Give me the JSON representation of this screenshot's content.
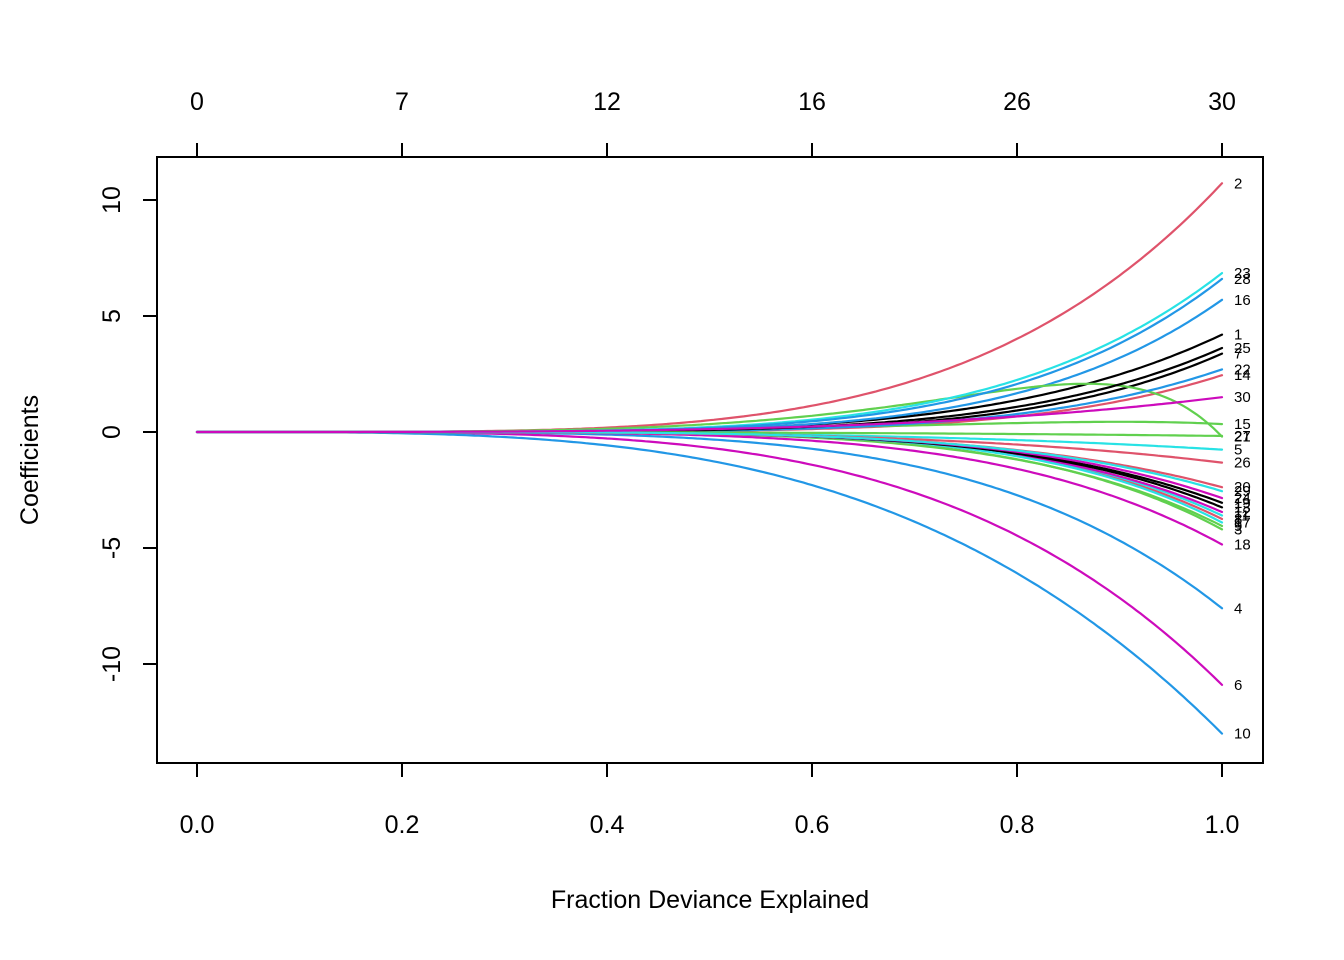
{
  "chart_data": {
    "type": "line",
    "title": "",
    "xlabel": "Fraction Deviance Explained",
    "ylabel": "Coefficients",
    "x_axis": {
      "range": [
        0.0,
        1.0
      ],
      "ticks": [
        0.0,
        0.2,
        0.4,
        0.6,
        0.8,
        1.0
      ],
      "tick_labels": [
        "0.0",
        "0.2",
        "0.4",
        "0.6",
        "0.8",
        "1.0"
      ]
    },
    "top_axis": {
      "ticks": [
        0.0,
        0.2,
        0.4,
        0.6,
        0.8,
        1.0
      ],
      "tick_labels": [
        "0",
        "7",
        "12",
        "16",
        "26",
        "30"
      ]
    },
    "y_axis": {
      "range": [
        -14,
        11.7
      ],
      "ticks": [
        -10,
        -5,
        0,
        5,
        10
      ],
      "tick_labels": [
        "-10",
        "-5",
        "0",
        "5",
        "10"
      ]
    },
    "grid": false,
    "legend": "none",
    "palette": {
      "black": "#000000",
      "red": "#DF536B",
      "green": "#61D04F",
      "blue": "#2297E6",
      "cyan": "#28E2E5",
      "magenta": "#CD0BBC"
    },
    "series": [
      {
        "label": "1",
        "color": "#000000",
        "end": 4.2,
        "coeffs": [
          [
            4.2,
            5.0
          ]
        ]
      },
      {
        "label": "2",
        "color": "#DF536B",
        "end": 10.72,
        "coeffs": [
          [
            10.72,
            4.4
          ]
        ]
      },
      {
        "label": "3",
        "color": "#61D04F",
        "end": -4.2,
        "coeffs": [
          [
            -4.2,
            5.7
          ]
        ]
      },
      {
        "label": "4",
        "color": "#2297E6",
        "end": -7.6,
        "coeffs": [
          [
            -7.6,
            4.6
          ]
        ]
      },
      {
        "label": "5",
        "color": "#28E2E5",
        "end": -0.76,
        "coeffs": [
          [
            -0.76,
            3.5
          ]
        ]
      },
      {
        "label": "6",
        "color": "#CD0BBC",
        "end": -10.9,
        "coeffs": [
          [
            -10.9,
            4.0
          ]
        ]
      },
      {
        "label": "7",
        "color": "#000000",
        "end": 3.38,
        "coeffs": [
          [
            3.38,
            5.8
          ]
        ]
      },
      {
        "label": "8",
        "color": "#DF536B",
        "end": -3.75,
        "coeffs": [
          [
            -3.75,
            5.8
          ]
        ]
      },
      {
        "label": "9",
        "color": "#61D04F",
        "end": -4.05,
        "coeffs": [
          [
            -4.05,
            5.5
          ]
        ]
      },
      {
        "label": "10",
        "color": "#2297E6",
        "end": -13.0,
        "coeffs": [
          [
            -13.0,
            3.4
          ]
        ]
      },
      {
        "label": "11",
        "color": "#28E2E5",
        "end": -3.6,
        "coeffs": [
          [
            -3.6,
            5.8
          ]
        ]
      },
      {
        "label": "12",
        "color": "#CD0BBC",
        "end": -3.45,
        "coeffs": [
          [
            -3.45,
            5.6
          ]
        ]
      },
      {
        "label": "13",
        "color": "#000000",
        "end": -3.25,
        "coeffs": [
          [
            -3.25,
            5.6
          ]
        ]
      },
      {
        "label": "14",
        "color": "#DF536B",
        "end": 2.45,
        "coeffs": [
          [
            2.45,
            5.8
          ]
        ]
      },
      {
        "label": "15",
        "color": "#61D04F",
        "end": 0.34,
        "coeffs": [
          [
            0.9,
            3.0
          ],
          [
            -0.56,
            9.0
          ]
        ]
      },
      {
        "label": "16",
        "color": "#2297E6",
        "end": 5.7,
        "coeffs": [
          [
            5.7,
            5.5
          ]
        ]
      },
      {
        "label": "17",
        "color": "#28E2E5",
        "end": -3.9,
        "coeffs": [
          [
            -3.9,
            5.9
          ]
        ]
      },
      {
        "label": "18",
        "color": "#CD0BBC",
        "end": -4.85,
        "coeffs": [
          [
            -4.85,
            5.0
          ]
        ]
      },
      {
        "label": "19",
        "color": "#000000",
        "end": -3.05,
        "coeffs": [
          [
            -3.05,
            5.4
          ]
        ]
      },
      {
        "label": "20",
        "color": "#DF536B",
        "end": -2.38,
        "coeffs": [
          [
            -2.38,
            5.0
          ]
        ]
      },
      {
        "label": "21",
        "color": "#61D04F",
        "end": -0.2,
        "coeffs": [
          [
            5.5,
            4.0
          ],
          [
            -5.7,
            12.0
          ]
        ]
      },
      {
        "label": "22",
        "color": "#2297E6",
        "end": 2.7,
        "coeffs": [
          [
            2.7,
            5.6
          ]
        ]
      },
      {
        "label": "23",
        "color": "#28E2E5",
        "end": 6.85,
        "coeffs": [
          [
            6.85,
            5.0
          ]
        ]
      },
      {
        "label": "24",
        "color": "#CD0BBC",
        "end": -2.85,
        "coeffs": [
          [
            -2.85,
            5.4
          ]
        ]
      },
      {
        "label": "25",
        "color": "#000000",
        "end": 3.62,
        "coeffs": [
          [
            3.62,
            5.4
          ]
        ]
      },
      {
        "label": "26",
        "color": "#DF536B",
        "end": -1.32,
        "coeffs": [
          [
            -1.32,
            4.0
          ]
        ]
      },
      {
        "label": "27",
        "color": "#61D04F",
        "end": -0.17,
        "coeffs": [
          [
            -0.17,
            3.0
          ]
        ]
      },
      {
        "label": "28",
        "color": "#2297E6",
        "end": 6.6,
        "coeffs": [
          [
            6.6,
            5.2
          ]
        ]
      },
      {
        "label": "29",
        "color": "#28E2E5",
        "end": -2.55,
        "coeffs": [
          [
            -2.55,
            5.2
          ]
        ]
      },
      {
        "label": "30",
        "color": "#CD0BBC",
        "end": 1.5,
        "coeffs": [
          [
            1.5,
            3.6
          ]
        ]
      }
    ]
  }
}
